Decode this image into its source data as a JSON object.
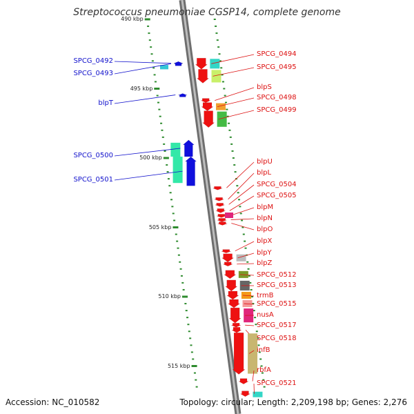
{
  "title": "Streptococcus pneumoniae CGSP14, complete genome",
  "footer": {
    "accession": "Accession: NC_010582",
    "topology": "Topology: circular; Length: 2,209,198 bp; Genes: 2,276"
  },
  "colors": {
    "backbone": "#8a8a8a",
    "tick": "#2e8b2e",
    "gene_forward": "#1010dd",
    "gene_reverse": "#ee1111",
    "label_forward": "#1010cc",
    "label_reverse": "#dd1111"
  },
  "scale": {
    "unit": "kbp",
    "top_kbp": 490,
    "bottom_kbp": 518,
    "major_labels": [
      "490 kbp",
      "495 kbp",
      "500 kbp",
      "505 kbp",
      "510 kbp",
      "515 kbp"
    ]
  },
  "forward_genes": [
    {
      "label": "SPCG_0492",
      "start_kbp": 493.05,
      "end_kbp": 493.3,
      "color": "#1010dd"
    },
    {
      "label": "SPCG_0493",
      "start_kbp": 493.05,
      "end_kbp": 493.35,
      "color": "#1010dd"
    },
    {
      "label": "blpT",
      "start_kbp": 495.35,
      "end_kbp": 495.55,
      "color": "#1010dd"
    },
    {
      "label": "SPCG_0500",
      "start_kbp": 498.7,
      "end_kbp": 499.9,
      "color": "#1010dd"
    },
    {
      "label": "SPCG_0501",
      "start_kbp": 499.9,
      "end_kbp": 502.0,
      "color": "#1010dd"
    }
  ],
  "reverse_genes": [
    {
      "label": "SPCG_0494",
      "start_kbp": 492.8,
      "end_kbp": 493.6,
      "color": "#ee1111"
    },
    {
      "label": "SPCG_0495",
      "start_kbp": 493.6,
      "end_kbp": 494.6,
      "color": "#ee1111"
    },
    {
      "label": "blpS",
      "start_kbp": 495.7,
      "end_kbp": 496.0,
      "color": "#ee1111"
    },
    {
      "label": "SPCG_0498",
      "start_kbp": 496.0,
      "end_kbp": 496.6,
      "color": "#ee1111"
    },
    {
      "label": "SPCG_0499",
      "start_kbp": 496.6,
      "end_kbp": 497.8,
      "color": "#ee1111"
    },
    {
      "label": "blpU",
      "start_kbp": 502.05,
      "end_kbp": 502.25,
      "color": "#ee1111"
    },
    {
      "label": "blpL",
      "start_kbp": 502.85,
      "end_kbp": 503.1,
      "color": "#ee1111"
    },
    {
      "label": "SPCG_0504",
      "start_kbp": 503.25,
      "end_kbp": 503.45,
      "color": "#ee1111"
    },
    {
      "label": "SPCG_0505",
      "start_kbp": 503.65,
      "end_kbp": 503.95,
      "color": "#ee1111"
    },
    {
      "label": "blpM",
      "start_kbp": 504.05,
      "end_kbp": 504.25,
      "color": "#ee1111"
    },
    {
      "label": "blpN",
      "start_kbp": 504.35,
      "end_kbp": 504.55,
      "color": "#ee1111"
    },
    {
      "label": "blpO",
      "start_kbp": 504.6,
      "end_kbp": 504.8,
      "color": "#ee1111"
    },
    {
      "label": "blpX",
      "start_kbp": 506.6,
      "end_kbp": 506.8,
      "color": "#ee1111"
    },
    {
      "label": "blpY",
      "start_kbp": 506.9,
      "end_kbp": 507.5,
      "color": "#ee1111"
    },
    {
      "label": "blpZ",
      "start_kbp": 507.5,
      "end_kbp": 507.8,
      "color": "#ee1111"
    },
    {
      "label": "SPCG_0512",
      "start_kbp": 508.1,
      "end_kbp": 508.7,
      "color": "#ee1111"
    },
    {
      "label": "SPCG_0513",
      "start_kbp": 508.8,
      "end_kbp": 509.6,
      "color": "#ee1111"
    },
    {
      "label": "trmB",
      "start_kbp": 509.6,
      "end_kbp": 510.2,
      "color": "#ee1111"
    },
    {
      "label": "SPCG_0515",
      "start_kbp": 510.2,
      "end_kbp": 510.8,
      "color": "#ee1111"
    },
    {
      "label": "nusA",
      "start_kbp": 510.8,
      "end_kbp": 511.9,
      "color": "#ee1111"
    },
    {
      "label": "SPCG_0517",
      "start_kbp": 511.9,
      "end_kbp": 512.2,
      "color": "#ee1111"
    },
    {
      "label": "SPCG_0518",
      "start_kbp": 512.2,
      "end_kbp": 512.6,
      "color": "#ee1111"
    },
    {
      "label": "infB",
      "start_kbp": 512.6,
      "end_kbp": 515.6,
      "color": "#ee1111"
    },
    {
      "label": "rbfA",
      "start_kbp": 515.9,
      "end_kbp": 516.3,
      "color": "#ee1111"
    },
    {
      "label": "SPCG_0521",
      "start_kbp": 516.8,
      "end_kbp": 517.2,
      "color": "#ee1111"
    }
  ]
}
